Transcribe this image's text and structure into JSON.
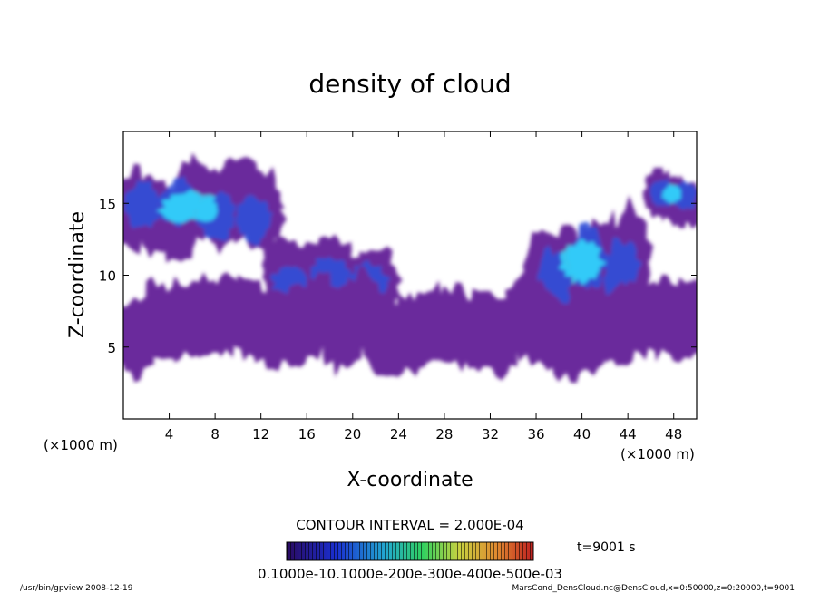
{
  "chart_data": {
    "type": "heatmap",
    "title": "density of cloud",
    "xlabel": "X-coordinate",
    "ylabel": "Z-coordinate",
    "x_unit_left": "(×1000 m)",
    "x_unit_right": "(×1000 m)",
    "xlim": [
      0,
      50
    ],
    "ylim": [
      0,
      20
    ],
    "x_ticks": [
      4,
      8,
      12,
      16,
      20,
      24,
      28,
      32,
      36,
      40,
      44,
      48
    ],
    "y_ticks": [
      5,
      10,
      15
    ],
    "contour_interval_text": "CONTOUR INTERVAL = 2.000E-04",
    "time_text": "t=9001  s",
    "colorbar_labels_text": "0.1000e-10.1000e-200e-300e-400e-500e-03",
    "footer_left": "/usr/bin/gpview  2008-12-19",
    "footer_right": "MarsCond_DensCloud.nc@DensCloud,x=0:50000,z=0:20000,t=9001",
    "cloud_regions": [
      {
        "x": [
          0,
          13
        ],
        "z": [
          12,
          17
        ],
        "level": "high"
      },
      {
        "x": [
          13,
          23
        ],
        "z": [
          8,
          12
        ],
        "level": "mid"
      },
      {
        "x": [
          36,
          45
        ],
        "z": [
          7,
          14
        ],
        "level": "high"
      },
      {
        "x": [
          46,
          50
        ],
        "z": [
          14,
          17
        ],
        "level": "high"
      },
      {
        "x": [
          0,
          50
        ],
        "z": [
          4,
          9
        ],
        "level": "low"
      }
    ],
    "grid": false,
    "colors": {
      "background": "#ffffff",
      "cloud_low": "#6b2a9c",
      "cloud_mid": "#3050d8",
      "cloud_high": "#30e0ff"
    }
  }
}
